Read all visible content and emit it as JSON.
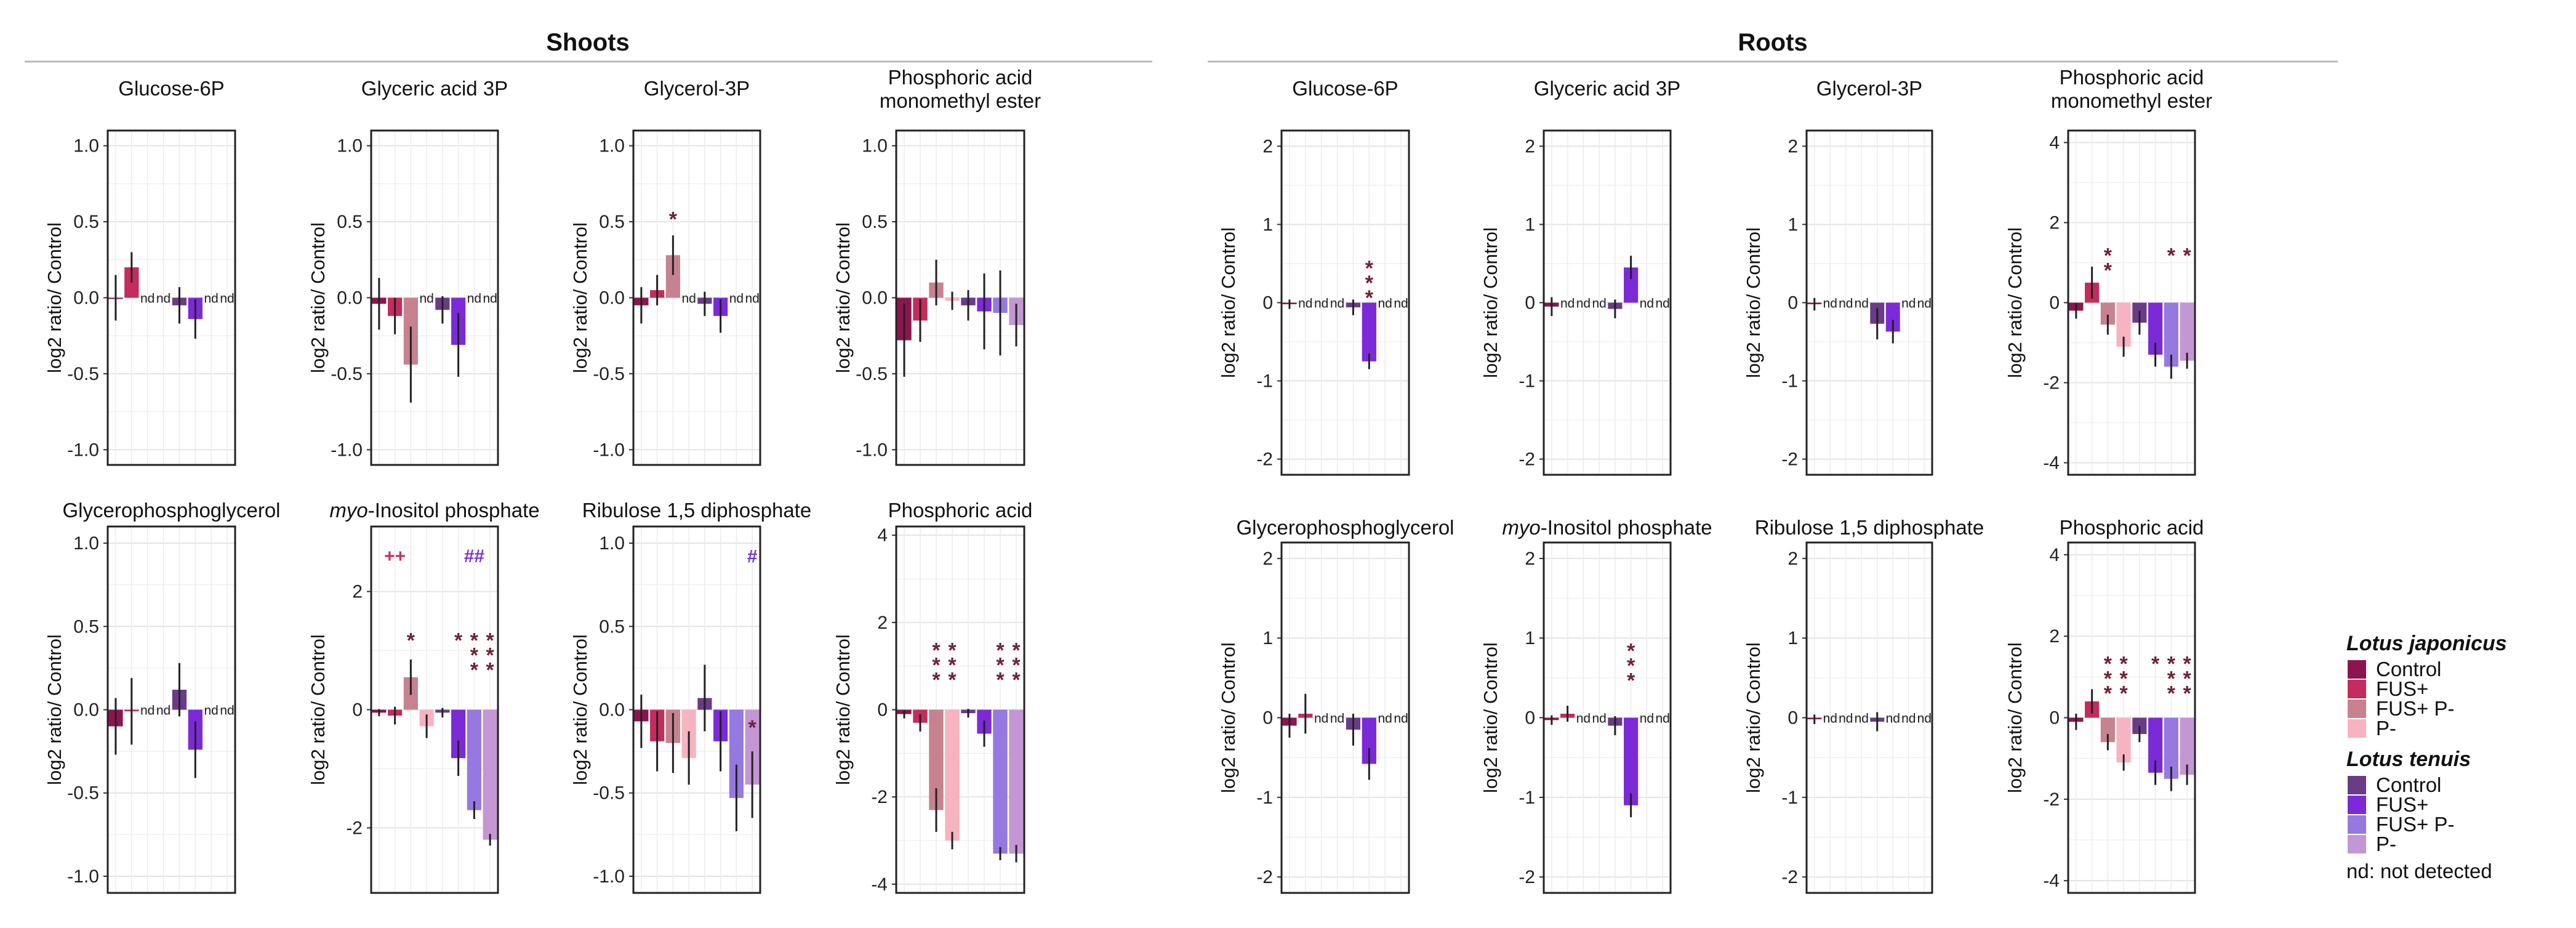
{
  "colors": {
    "lj_control": "#8c1550",
    "lj_fus": "#c32c5c",
    "lj_fus_p": "#c7828f",
    "lj_p": "#f7b3c0",
    "lt_control": "#6a3b86",
    "lt_fus": "#7c2ad8",
    "lt_fus_p": "#9579e0",
    "lt_p": "#c596d4"
  },
  "section_titles": {
    "shoots": "Shoots",
    "roots": "Roots"
  },
  "nd_label": "nd",
  "legend": {
    "groups": [
      {
        "species": "Lotus japonicus",
        "items": [
          {
            "label": "Control",
            "color_key": "lj_control"
          },
          {
            "label": "FUS+",
            "color_key": "lj_fus"
          },
          {
            "label": "FUS+ P-",
            "color_key": "lj_fus_p"
          },
          {
            "label": "P-",
            "color_key": "lj_p"
          }
        ]
      },
      {
        "species": "Lotus tenuis",
        "items": [
          {
            "label": "Control",
            "color_key": "lt_control"
          },
          {
            "label": "FUS+",
            "color_key": "lt_fus"
          },
          {
            "label": "FUS+ P-",
            "color_key": "lt_fus_p"
          },
          {
            "label": "P-",
            "color_key": "lt_p"
          }
        ]
      }
    ],
    "note": "nd: not detected"
  },
  "chart_data": [
    {
      "type": "bar",
      "section": "Shoots",
      "title": "Glucose-6P",
      "ylabel": "log2 ratio/ Control",
      "ylim": [
        -1.1,
        1.1
      ],
      "ticks": [
        -1.0,
        -0.5,
        0.0,
        0.5,
        1.0
      ],
      "tick_labels": [
        "-1.0",
        "-0.5",
        "0.0",
        "0.5",
        "1.0"
      ],
      "categories": [
        "LJ Control",
        "LJ FUS+",
        "LJ FUS+ P-",
        "LJ P-",
        "LT Control",
        "LT FUS+",
        "LT FUS+ P-",
        "LT P-"
      ],
      "values": [
        0.0,
        0.2,
        null,
        null,
        -0.05,
        -0.14,
        null,
        null
      ],
      "errors": [
        0.15,
        0.1,
        null,
        null,
        0.12,
        0.13,
        null,
        null
      ],
      "annotations": []
    },
    {
      "type": "bar",
      "section": "Shoots",
      "title": "Glyceric acid 3P",
      "ylabel": "log2 ratio/ Control",
      "ylim": [
        -1.1,
        1.1
      ],
      "ticks": [
        -1.0,
        -0.5,
        0.0,
        0.5,
        1.0
      ],
      "tick_labels": [
        "-1.0",
        "-0.5",
        "0.0",
        "0.5",
        "1.0"
      ],
      "categories": [
        "LJ Control",
        "LJ FUS+",
        "LJ FUS+ P-",
        "LJ P-",
        "LT Control",
        "LT FUS+",
        "LT FUS+ P-",
        "LT P-"
      ],
      "values": [
        -0.04,
        -0.12,
        -0.44,
        null,
        -0.08,
        -0.31,
        null,
        null
      ],
      "errors": [
        0.17,
        0.12,
        0.25,
        null,
        0.09,
        0.21,
        null,
        null
      ],
      "annotations": []
    },
    {
      "type": "bar",
      "section": "Shoots",
      "title": "Glycerol-3P",
      "ylabel": "log2 ratio/ Control",
      "ylim": [
        -1.1,
        1.1
      ],
      "ticks": [
        -1.0,
        -0.5,
        0.0,
        0.5,
        1.0
      ],
      "tick_labels": [
        "-1.0",
        "-0.5",
        "0.0",
        "0.5",
        "1.0"
      ],
      "categories": [
        "LJ Control",
        "LJ FUS+",
        "LJ FUS+ P-",
        "LJ P-",
        "LT Control",
        "LT FUS+",
        "LT FUS+ P-",
        "LT P-"
      ],
      "values": [
        -0.05,
        0.05,
        0.28,
        null,
        -0.04,
        -0.12,
        null,
        null
      ],
      "errors": [
        0.12,
        0.1,
        0.13,
        null,
        0.08,
        0.11,
        null,
        null
      ],
      "annotations": [
        {
          "index": 2,
          "text": "*",
          "y": 0.47,
          "kind": "star"
        }
      ]
    },
    {
      "type": "bar",
      "section": "Shoots",
      "title": "Phosphoric acid monomethyl ester",
      "title_lines": [
        "Phosphoric acid",
        "monomethyl ester"
      ],
      "ylabel": "log2 ratio/ Control",
      "ylim": [
        -1.1,
        1.1
      ],
      "ticks": [
        -1.0,
        -0.5,
        0.0,
        0.5,
        1.0
      ],
      "tick_labels": [
        "-1.0",
        "-0.5",
        "0.0",
        "0.5",
        "1.0"
      ],
      "categories": [
        "LJ Control",
        "LJ FUS+",
        "LJ FUS+ P-",
        "LJ P-",
        "LT Control",
        "LT FUS+",
        "LT FUS+ P-",
        "LT P-"
      ],
      "values": [
        -0.28,
        -0.15,
        0.1,
        -0.02,
        -0.05,
        -0.09,
        -0.1,
        -0.18
      ],
      "errors": [
        0.24,
        0.14,
        0.15,
        0.06,
        0.1,
        0.25,
        0.28,
        0.14
      ],
      "annotations": []
    },
    {
      "type": "bar",
      "section": "Shoots",
      "title": "Glycerophosphoglycerol",
      "ylabel": "log2 ratio/ Control",
      "ylim": [
        -1.1,
        1.1
      ],
      "ticks": [
        -1.0,
        -0.5,
        0.0,
        0.5,
        1.0
      ],
      "tick_labels": [
        "-1.0",
        "-0.5",
        "0.0",
        "0.5",
        "1.0"
      ],
      "categories": [
        "LJ Control",
        "LJ FUS+",
        "LJ FUS+ P-",
        "LJ P-",
        "LT Control",
        "LT FUS+",
        "LT FUS+ P-",
        "LT P-"
      ],
      "values": [
        -0.1,
        -0.01,
        null,
        null,
        0.12,
        -0.24,
        null,
        null
      ],
      "errors": [
        0.17,
        0.2,
        null,
        null,
        0.16,
        0.17,
        null,
        null
      ],
      "annotations": []
    },
    {
      "type": "bar",
      "section": "Shoots",
      "title": "myo-Inositol phosphate",
      "title_italic": "myo",
      "title_rest": "-Inositol phosphate",
      "ylabel": "log2 ratio/ Control",
      "ylim": [
        -3.1,
        3.1
      ],
      "ticks": [
        -2,
        0,
        2
      ],
      "tick_labels": [
        "-2",
        "0",
        "2"
      ],
      "categories": [
        "LJ Control",
        "LJ FUS+",
        "LJ FUS+ P-",
        "LJ P-",
        "LT Control",
        "LT FUS+",
        "LT FUS+ P-",
        "LT P-"
      ],
      "values": [
        -0.05,
        -0.1,
        0.55,
        -0.28,
        -0.05,
        -0.82,
        -1.7,
        -2.2
      ],
      "errors": [
        0.06,
        0.15,
        0.3,
        0.2,
        0.08,
        0.3,
        0.15,
        0.1
      ],
      "annotations": [
        {
          "index": 2,
          "text": "*",
          "y": 1.05,
          "kind": "star"
        },
        {
          "index": 5,
          "text": "*",
          "y": 1.05,
          "kind": "star"
        },
        {
          "index": 6,
          "text": "***",
          "y": 1.05,
          "kind": "star"
        },
        {
          "index": 7,
          "text": "***",
          "y": 1.05,
          "kind": "star"
        },
        {
          "index": 1,
          "text": "++",
          "y": 2.6,
          "kind": "plus"
        },
        {
          "index": 6,
          "text": "##",
          "y": 2.6,
          "kind": "hash"
        }
      ]
    },
    {
      "type": "bar",
      "section": "Shoots",
      "title": "Ribulose 1,5 diphosphate",
      "ylabel": "log2 ratio/ Control",
      "ylim": [
        -1.1,
        1.1
      ],
      "ticks": [
        -1.0,
        -0.5,
        0.0,
        0.5,
        1.0
      ],
      "tick_labels": [
        "-1.0",
        "-0.5",
        "0.0",
        "0.5",
        "1.0"
      ],
      "categories": [
        "LJ Control",
        "LJ FUS+",
        "LJ FUS+ P-",
        "LJ P-",
        "LT Control",
        "LT FUS+",
        "LT FUS+ P-",
        "LT P-"
      ],
      "values": [
        -0.07,
        -0.19,
        -0.2,
        -0.29,
        0.07,
        -0.19,
        -0.53,
        -0.45
      ],
      "errors": [
        0.16,
        0.18,
        0.18,
        0.16,
        0.2,
        0.18,
        0.2,
        0.2
      ],
      "annotations": [
        {
          "index": 7,
          "text": "*",
          "y": -0.15,
          "kind": "star"
        },
        {
          "index": 7,
          "text": "#",
          "y": 0.92,
          "kind": "hash"
        }
      ]
    },
    {
      "type": "bar",
      "section": "Shoots",
      "title": "Phosphoric acid",
      "ylabel": "log2 ratio/ Control",
      "ylim": [
        -4.2,
        4.2
      ],
      "ticks": [
        -4,
        -2,
        0,
        2,
        4
      ],
      "tick_labels": [
        "-4",
        "-2",
        "0",
        "2",
        "4"
      ],
      "categories": [
        "LJ Control",
        "LJ FUS+",
        "LJ FUS+ P-",
        "LJ P-",
        "LT Control",
        "LT FUS+",
        "LT FUS+ P-",
        "LT P-"
      ],
      "values": [
        -0.1,
        -0.3,
        -2.3,
        -3.0,
        -0.08,
        -0.55,
        -3.3,
        -3.3
      ],
      "errors": [
        0.1,
        0.2,
        0.5,
        0.2,
        0.1,
        0.3,
        0.15,
        0.2
      ],
      "annotations": [
        {
          "index": 2,
          "text": "***",
          "y": 1.2,
          "kind": "star"
        },
        {
          "index": 3,
          "text": "***",
          "y": 1.2,
          "kind": "star"
        },
        {
          "index": 6,
          "text": "***",
          "y": 1.2,
          "kind": "star"
        },
        {
          "index": 7,
          "text": "***",
          "y": 1.2,
          "kind": "star"
        }
      ]
    },
    {
      "type": "bar",
      "section": "Roots",
      "title": "Glucose-6P",
      "ylabel": "log2 ratio/ Control",
      "ylim": [
        -2.2,
        2.2
      ],
      "ticks": [
        -2,
        -1,
        0,
        1,
        2
      ],
      "tick_labels": [
        "-2",
        "-1",
        "0",
        "1",
        "2"
      ],
      "categories": [
        "LJ Control",
        "LJ FUS+",
        "LJ FUS+ P-",
        "LJ P-",
        "LT Control",
        "LT FUS+",
        "LT FUS+ P-",
        "LT P-"
      ],
      "values": [
        -0.02,
        null,
        null,
        null,
        -0.06,
        -0.75,
        null,
        null
      ],
      "errors": [
        0.06,
        null,
        null,
        null,
        0.1,
        0.1,
        null,
        null
      ],
      "annotations": [
        {
          "index": 5,
          "text": "***",
          "y": 0.35,
          "kind": "star"
        }
      ]
    },
    {
      "type": "bar",
      "section": "Roots",
      "title": "Glyceric acid 3P",
      "ylabel": "log2 ratio/ Control",
      "ylim": [
        -2.2,
        2.2
      ],
      "ticks": [
        -2,
        -1,
        0,
        1,
        2
      ],
      "tick_labels": [
        "-2",
        "-1",
        "0",
        "1",
        "2"
      ],
      "categories": [
        "LJ Control",
        "LJ FUS+",
        "LJ FUS+ P-",
        "LJ P-",
        "LT Control",
        "LT FUS+",
        "LT FUS+ P-",
        "LT P-"
      ],
      "values": [
        -0.05,
        null,
        null,
        null,
        -0.08,
        0.45,
        null,
        null
      ],
      "errors": [
        0.12,
        null,
        null,
        null,
        0.12,
        0.15,
        null,
        null
      ],
      "annotations": []
    },
    {
      "type": "bar",
      "section": "Roots",
      "title": "Glycerol-3P",
      "ylabel": "log2 ratio/ Control",
      "ylim": [
        -2.2,
        2.2
      ],
      "ticks": [
        -2,
        -1,
        0,
        1,
        2
      ],
      "tick_labels": [
        "-2",
        "-1",
        "0",
        "1",
        "2"
      ],
      "categories": [
        "LJ Control",
        "LJ FUS+",
        "LJ FUS+ P-",
        "LJ P-",
        "LT Control",
        "LT FUS+",
        "LT FUS+ P-",
        "LT P-"
      ],
      "values": [
        -0.02,
        null,
        null,
        null,
        -0.27,
        -0.37,
        null,
        null
      ],
      "errors": [
        0.08,
        null,
        null,
        null,
        0.2,
        0.15,
        null,
        null
      ],
      "annotations": []
    },
    {
      "type": "bar",
      "section": "Roots",
      "title": "Phosphoric acid monomethyl ester",
      "title_lines": [
        "Phosphoric acid",
        "monomethyl ester"
      ],
      "ylabel": "log2 ratio/ Control",
      "ylim": [
        -4.3,
        4.3
      ],
      "ticks": [
        -4,
        -2,
        0,
        2,
        4
      ],
      "tick_labels": [
        "-4",
        "-2",
        "0",
        "2",
        "4"
      ],
      "categories": [
        "LJ Control",
        "LJ FUS+",
        "LJ FUS+ P-",
        "LJ P-",
        "LT Control",
        "LT FUS+",
        "LT FUS+ P-",
        "LT P-"
      ],
      "values": [
        -0.2,
        0.5,
        -0.55,
        -1.1,
        -0.5,
        -1.3,
        -1.6,
        -1.45
      ],
      "errors": [
        0.2,
        0.4,
        0.25,
        0.25,
        0.3,
        0.3,
        0.3,
        0.2
      ],
      "annotations": [
        {
          "index": 2,
          "text": "**",
          "y": 1.0,
          "kind": "star"
        },
        {
          "index": 6,
          "text": "*",
          "y": 1.0,
          "kind": "star"
        },
        {
          "index": 7,
          "text": "*",
          "y": 1.0,
          "kind": "star"
        }
      ]
    },
    {
      "type": "bar",
      "section": "Roots",
      "title": "Glycerophosphoglycerol",
      "ylabel": "log2 ratio/ Control",
      "ylim": [
        -2.2,
        2.2
      ],
      "ticks": [
        -2,
        -1,
        0,
        1,
        2
      ],
      "tick_labels": [
        "-2",
        "-1",
        "0",
        "1",
        "2"
      ],
      "categories": [
        "LJ Control",
        "LJ FUS+",
        "LJ FUS+ P-",
        "LJ P-",
        "LT Control",
        "LT FUS+",
        "LT FUS+ P-",
        "LT P-"
      ],
      "values": [
        -0.1,
        0.05,
        null,
        null,
        -0.15,
        -0.58,
        null,
        null
      ],
      "errors": [
        0.15,
        0.25,
        null,
        null,
        0.2,
        0.2,
        null,
        null
      ],
      "annotations": []
    },
    {
      "type": "bar",
      "section": "Roots",
      "title": "myo-Inositol phosphate",
      "title_italic": "myo",
      "title_rest": "-Inositol phosphate",
      "ylabel": "log2 ratio/ Control",
      "ylim": [
        -2.2,
        2.2
      ],
      "ticks": [
        -2,
        -1,
        0,
        1,
        2
      ],
      "tick_labels": [
        "-2",
        "-1",
        "0",
        "1",
        "2"
      ],
      "categories": [
        "LJ Control",
        "LJ FUS+",
        "LJ FUS+ P-",
        "LJ P-",
        "LT Control",
        "LT FUS+",
        "LT FUS+ P-",
        "LT P-"
      ],
      "values": [
        -0.03,
        0.05,
        null,
        null,
        -0.1,
        -1.1,
        null,
        null
      ],
      "errors": [
        0.06,
        0.1,
        null,
        null,
        0.12,
        0.15,
        null,
        null
      ],
      "annotations": [
        {
          "index": 5,
          "text": "***",
          "y": 0.75,
          "kind": "star"
        }
      ]
    },
    {
      "type": "bar",
      "section": "Roots",
      "title": "Ribulose 1,5 diphosphate",
      "ylabel": "log2 ratio/ Control",
      "ylim": [
        -2.2,
        2.2
      ],
      "ticks": [
        -2,
        -1,
        0,
        1,
        2
      ],
      "tick_labels": [
        "-2",
        "-1",
        "0",
        "1",
        "2"
      ],
      "categories": [
        "LJ Control",
        "LJ FUS+",
        "LJ FUS+ P-",
        "LJ P-",
        "LT Control",
        "LT FUS+",
        "LT FUS+ P-",
        "LT P-"
      ],
      "values": [
        -0.02,
        null,
        null,
        null,
        -0.05,
        null,
        null,
        null
      ],
      "errors": [
        0.06,
        null,
        null,
        null,
        0.12,
        null,
        null,
        null
      ],
      "annotations": []
    },
    {
      "type": "bar",
      "section": "Roots",
      "title": "Phosphoric acid",
      "ylabel": "log2 ratio/ Control",
      "ylim": [
        -4.3,
        4.3
      ],
      "ticks": [
        -4,
        -2,
        0,
        2,
        4
      ],
      "tick_labels": [
        "-4",
        "-2",
        "0",
        "2",
        "4"
      ],
      "categories": [
        "LJ Control",
        "LJ FUS+",
        "LJ FUS+ P-",
        "LJ P-",
        "LT Control",
        "LT FUS+",
        "LT FUS+ P-",
        "LT P-"
      ],
      "values": [
        -0.1,
        0.4,
        -0.6,
        -1.1,
        -0.4,
        -1.35,
        -1.5,
        -1.4
      ],
      "errors": [
        0.2,
        0.3,
        0.2,
        0.2,
        0.2,
        0.3,
        0.3,
        0.25
      ],
      "annotations": [
        {
          "index": 2,
          "text": "***",
          "y": 1.15,
          "kind": "star"
        },
        {
          "index": 3,
          "text": "***",
          "y": 1.15,
          "kind": "star"
        },
        {
          "index": 5,
          "text": "*",
          "y": 1.15,
          "kind": "star"
        },
        {
          "index": 6,
          "text": "***",
          "y": 1.15,
          "kind": "star"
        },
        {
          "index": 7,
          "text": "***",
          "y": 1.15,
          "kind": "star"
        }
      ]
    }
  ]
}
